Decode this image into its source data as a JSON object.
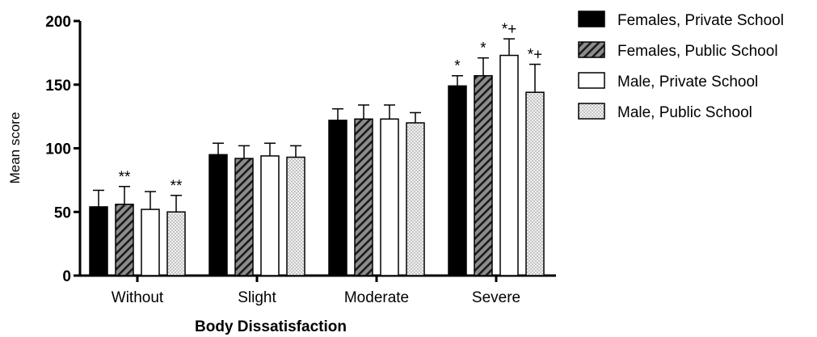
{
  "chart_data": {
    "type": "bar",
    "xlabel": "Body Dissatisfaction",
    "ylabel": "Mean score",
    "ylim": [
      0,
      200
    ],
    "yticks": [
      0,
      50,
      100,
      150,
      200
    ],
    "categories": [
      "Without",
      "Slight",
      "Moderate",
      "Severe"
    ],
    "legend_position": "right",
    "series": [
      {
        "name": "Females, Private School",
        "fill": "solid-black",
        "values": [
          54,
          95,
          122,
          149
        ],
        "errors": [
          13,
          9,
          9,
          8
        ],
        "annotations": [
          "",
          "",
          "",
          "*"
        ]
      },
      {
        "name": "Females, Public School",
        "fill": "gray-diagonal-hatch",
        "values": [
          56,
          92,
          123,
          157
        ],
        "errors": [
          14,
          10,
          11,
          14
        ],
        "annotations": [
          "**",
          "",
          "",
          "*"
        ]
      },
      {
        "name": "Male, Private School",
        "fill": "white",
        "values": [
          52,
          94,
          123,
          173
        ],
        "errors": [
          14,
          10,
          11,
          13
        ],
        "annotations": [
          "",
          "",
          "",
          "*+"
        ]
      },
      {
        "name": "Male, Public School",
        "fill": "light-dotted",
        "values": [
          50,
          93,
          120,
          144
        ],
        "errors": [
          13,
          9,
          8,
          22
        ],
        "annotations": [
          "**",
          "",
          "",
          "*+"
        ]
      }
    ]
  }
}
